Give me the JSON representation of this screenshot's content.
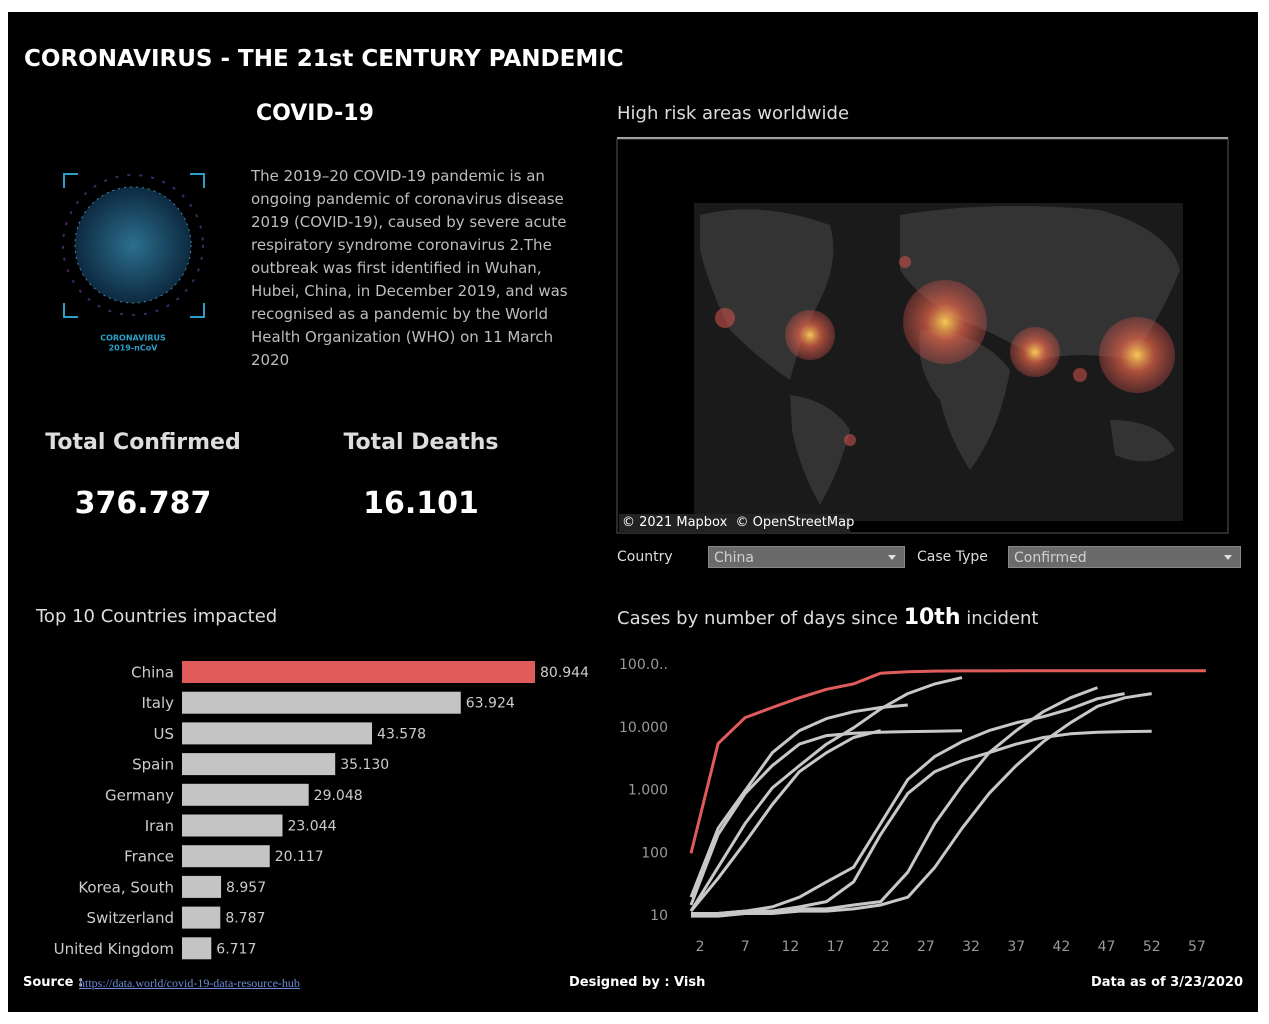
{
  "header": {
    "title": "CORONAVIRUS - THE 21st CENTURY PANDEMIC"
  },
  "intro": {
    "heading": "COVID-19",
    "image_caption": [
      "CORONAVIRUS",
      "2019-nCoV"
    ],
    "lines": [
      "The 2019–20 COVID-19 pandemic is an",
      "ongoing pandemic of coronavirus disease",
      "2019 (COVID-19), caused by severe acute",
      "respiratory syndrome coronavirus 2.The",
      "outbreak was first identified in Wuhan,",
      "Hubei, China, in December 2019, and was",
      "recognised as a pandemic by the World",
      "Health Organization (WHO) on 11 March",
      "2020"
    ]
  },
  "kpis": [
    {
      "label": "Total Confirmed",
      "value": "376.787"
    },
    {
      "label": "Total Deaths",
      "value": "16.101"
    }
  ],
  "map": {
    "title": "High risk areas worldwide",
    "attribution": "© 2021 Mapbox  © OpenStreetMap"
  },
  "filters": [
    {
      "label": "Country",
      "value": "China"
    },
    {
      "label": "Case Type",
      "value": "Confirmed"
    }
  ],
  "chart_data": [
    {
      "type": "bar",
      "orientation": "horizontal",
      "title": "Top 10 Countries impacted",
      "categories": [
        "China",
        "Italy",
        "US",
        "Spain",
        "Germany",
        "Iran",
        "France",
        "Korea, South",
        "Switzerland",
        "United Kingdom"
      ],
      "values": [
        80944,
        63924,
        43578,
        35130,
        29048,
        23044,
        20117,
        8957,
        8787,
        6717
      ],
      "value_labels": [
        "80.944",
        "63.924",
        "43.578",
        "35.130",
        "29.048",
        "23.044",
        "20.117",
        "8.957",
        "8.787",
        "6.717"
      ],
      "colors": [
        "#e05c5c",
        "#c4c4c4",
        "#c4c4c4",
        "#c4c4c4",
        "#c4c4c4",
        "#c4c4c4",
        "#c4c4c4",
        "#c4c4c4",
        "#c4c4c4",
        "#c4c4c4"
      ]
    },
    {
      "type": "line",
      "title": {
        "prefix": "Cases by number of days since ",
        "emphasis": "10th",
        "suffix": " incident"
      },
      "log_y": true,
      "x": [
        1,
        4,
        7,
        10,
        13,
        16,
        19,
        22,
        25,
        28,
        31,
        34,
        37,
        40,
        43,
        46,
        49,
        52,
        55,
        58
      ],
      "xlim": [
        0,
        60
      ],
      "xticks": [
        2,
        7,
        12,
        17,
        22,
        27,
        32,
        37,
        42,
        47,
        52,
        57
      ],
      "ylim": [
        5,
        120000
      ],
      "yticks": [
        10,
        100,
        {
          "value": 1000,
          "label": "1.000"
        },
        {
          "value": 10000,
          "label": "10.000"
        },
        {
          "value": 100000,
          "label": "100.0.."
        }
      ],
      "series": [
        {
          "color": "#c8c8c8",
          "values": [
            12,
            60,
            300,
            1100,
            2500,
            5500,
            10000,
            20000,
            35000,
            50000,
            63000,
            null,
            null,
            null,
            null,
            null,
            null,
            null,
            null,
            null
          ]
        },
        {
          "color": "#c8c8c8",
          "values": [
            15,
            200,
            900,
            2500,
            5500,
            7500,
            8200,
            8500,
            8700,
            8800,
            8950,
            null,
            null,
            null,
            null,
            null,
            null,
            null,
            null,
            null
          ]
        },
        {
          "color": "#c8c8c8",
          "values": [
            12,
            40,
            150,
            600,
            2000,
            4000,
            7000,
            9000,
            null,
            null,
            null,
            null,
            null,
            null,
            null,
            null,
            null,
            null,
            null,
            null
          ]
        },
        {
          "color": "#c8c8c8",
          "values": [
            20,
            250,
            1000,
            4000,
            9000,
            14000,
            18000,
            21000,
            23000,
            null,
            null,
            null,
            null,
            null,
            null,
            null,
            null,
            null,
            null,
            null
          ]
        },
        {
          "color": "#c8c8c8",
          "values": [
            11,
            11,
            12,
            12,
            13,
            13,
            15,
            17,
            50,
            300,
            1200,
            4000,
            9000,
            18000,
            30000,
            43578,
            null,
            null,
            null,
            null
          ]
        },
        {
          "color": "#c8c8c8",
          "values": [
            10,
            11,
            12,
            14,
            20,
            35,
            60,
            300,
            1500,
            3500,
            6000,
            9000,
            12000,
            15000,
            20000,
            29000,
            35000,
            null,
            null,
            null
          ]
        },
        {
          "color": "#c8c8c8",
          "values": [
            10,
            10,
            11,
            11,
            12,
            12,
            13,
            15,
            20,
            60,
            250,
            900,
            2500,
            6000,
            12000,
            22000,
            30000,
            35000,
            null,
            null
          ]
        },
        {
          "color": "#c8c8c8",
          "values": [
            11,
            11,
            12,
            12,
            14,
            17,
            35,
            200,
            900,
            2000,
            3000,
            4000,
            5500,
            7000,
            8000,
            8500,
            8700,
            8800,
            null,
            null
          ]
        },
        {
          "color": "#e05c5c",
          "values": [
            100,
            5600,
            14500,
            21000,
            30000,
            41000,
            50000,
            74000,
            78000,
            80000,
            80500,
            80600,
            80700,
            80750,
            80800,
            80850,
            80880,
            80900,
            80920,
            80944
          ]
        }
      ]
    }
  ],
  "footer": {
    "source_label": "Source :",
    "source_link": "https://data.world/covid-19-data-resource-hub",
    "designer": "Designed by : Vish",
    "data_date": "Data as of 3/23/2020"
  }
}
